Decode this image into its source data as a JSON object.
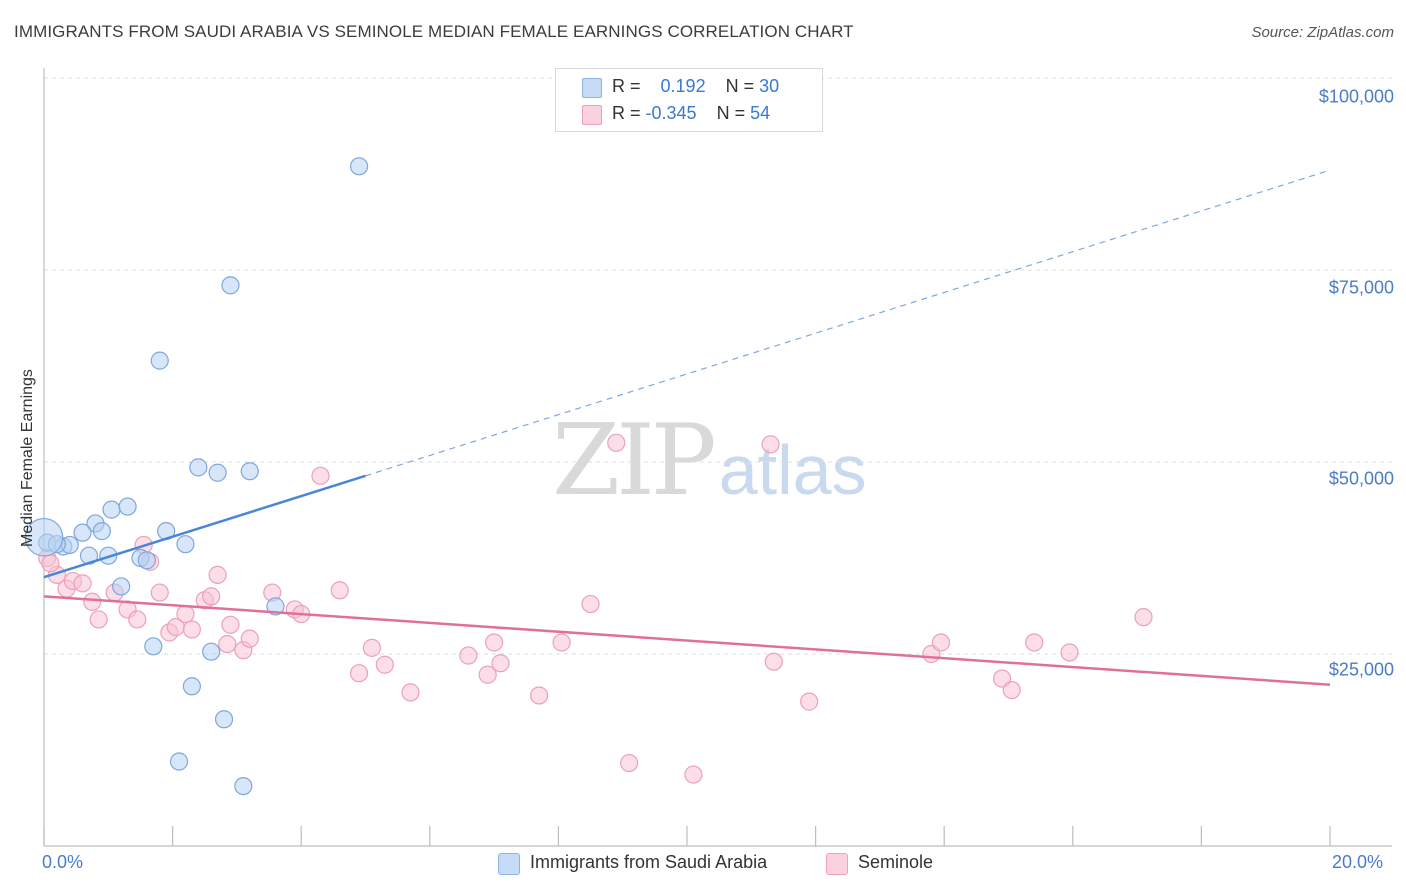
{
  "header": {
    "title": "IMMIGRANTS FROM SAUDI ARABIA VS SEMINOLE MEDIAN FEMALE EARNINGS CORRELATION CHART",
    "source": "Source: ZipAtlas.com"
  },
  "watermark": {
    "zip": "ZIP",
    "atlas": "atlas"
  },
  "legend": {
    "rows": [
      {
        "r_label": "R =",
        "r_value": "0.192",
        "n_label": "N =",
        "n_value": "30",
        "color": "#a9c8ef"
      },
      {
        "r_label": "R =",
        "r_value": "-0.345",
        "n_label": "N =",
        "n_value": "54",
        "color": "#f5b8cb"
      }
    ]
  },
  "bottom_legend": {
    "items": [
      {
        "label": "Immigrants from Saudi Arabia",
        "color": "#a9c8ef"
      },
      {
        "label": "Seminole",
        "color": "#f5b8cb"
      }
    ]
  },
  "chart_data": {
    "type": "scatter",
    "title": "IMMIGRANTS FROM SAUDI ARABIA VS SEMINOLE MEDIAN FEMALE EARNINGS CORRELATION CHART",
    "xlabel": "",
    "ylabel": "Median Female Earnings",
    "xlim": [
      0,
      20
    ],
    "ylim": [
      0,
      100000
    ],
    "x_tick_labels": [
      "0.0%",
      "20.0%"
    ],
    "y_tick_labels": [
      "$25,000",
      "$50,000",
      "$75,000",
      "$100,000"
    ],
    "y_tick_values": [
      25000,
      50000,
      75000,
      100000
    ],
    "grid": true,
    "legend_position": "top-center",
    "series": [
      {
        "name": "Immigrants from Saudi Arabia",
        "color": "#4a86d8",
        "fill": "#b6d1f2",
        "points": [
          [
            0.05,
            39500
          ],
          [
            0.3,
            39000
          ],
          [
            0.4,
            39200
          ],
          [
            0.7,
            37800
          ],
          [
            0.8,
            42000
          ],
          [
            0.9,
            41000
          ],
          [
            0.6,
            40800
          ],
          [
            1.05,
            43800
          ],
          [
            1.3,
            44200
          ],
          [
            1.0,
            37800
          ],
          [
            1.2,
            33800
          ],
          [
            1.5,
            37500
          ],
          [
            1.6,
            37200
          ],
          [
            1.9,
            41000
          ],
          [
            2.2,
            39300
          ],
          [
            1.7,
            26000
          ],
          [
            2.3,
            20800
          ],
          [
            2.4,
            49300
          ],
          [
            2.7,
            48600
          ],
          [
            3.2,
            48800
          ],
          [
            2.9,
            73000
          ],
          [
            1.8,
            63200
          ],
          [
            4.9,
            88500
          ],
          [
            3.6,
            31200
          ],
          [
            2.6,
            25300
          ],
          [
            2.8,
            16500
          ],
          [
            2.1,
            11000
          ],
          [
            3.1,
            7800
          ],
          [
            0.2,
            39300
          ],
          [
            0.0,
            40200
          ]
        ],
        "sizes": [
          1,
          1,
          1,
          1,
          1,
          1,
          1,
          1,
          1,
          1,
          1,
          1,
          1,
          1,
          1,
          1,
          1,
          1,
          1,
          1,
          1,
          1,
          1,
          1,
          1,
          1,
          1,
          1,
          1,
          2.2
        ],
        "trend": {
          "x0": 0,
          "y0": 35000,
          "x1": 5.0,
          "y1": 48200,
          "x_ext": 20,
          "y_ext": 88000
        }
      },
      {
        "name": "Seminole",
        "color": "#e0709a",
        "fill": "#f7c3d3",
        "points": [
          [
            0.05,
            37500
          ],
          [
            0.2,
            35300
          ],
          [
            0.35,
            33500
          ],
          [
            0.45,
            34500
          ],
          [
            0.6,
            34200
          ],
          [
            0.75,
            31800
          ],
          [
            0.85,
            29500
          ],
          [
            1.1,
            33000
          ],
          [
            1.3,
            30800
          ],
          [
            1.45,
            29500
          ],
          [
            1.55,
            39200
          ],
          [
            1.65,
            37000
          ],
          [
            1.8,
            33000
          ],
          [
            1.95,
            27800
          ],
          [
            2.05,
            28500
          ],
          [
            2.2,
            30200
          ],
          [
            2.3,
            28200
          ],
          [
            2.5,
            32000
          ],
          [
            2.6,
            32500
          ],
          [
            2.7,
            35300
          ],
          [
            2.9,
            28800
          ],
          [
            2.85,
            26300
          ],
          [
            3.1,
            25500
          ],
          [
            3.2,
            27000
          ],
          [
            3.55,
            33000
          ],
          [
            3.9,
            30800
          ],
          [
            4.0,
            30200
          ],
          [
            4.3,
            48200
          ],
          [
            4.6,
            33300
          ],
          [
            4.9,
            22500
          ],
          [
            5.1,
            25800
          ],
          [
            5.3,
            23600
          ],
          [
            5.7,
            20000
          ],
          [
            6.6,
            24800
          ],
          [
            6.9,
            22300
          ],
          [
            7.0,
            26500
          ],
          [
            7.1,
            23800
          ],
          [
            7.7,
            19600
          ],
          [
            8.05,
            26500
          ],
          [
            8.5,
            31500
          ],
          [
            8.9,
            52500
          ],
          [
            9.1,
            10800
          ],
          [
            10.1,
            9300
          ],
          [
            11.3,
            52300
          ],
          [
            11.35,
            24000
          ],
          [
            11.9,
            18800
          ],
          [
            13.8,
            25000
          ],
          [
            13.95,
            26500
          ],
          [
            14.9,
            21800
          ],
          [
            15.05,
            20300
          ],
          [
            15.4,
            26500
          ],
          [
            15.95,
            25200
          ],
          [
            17.1,
            29800
          ],
          [
            0.1,
            36800
          ]
        ],
        "trend": {
          "x0": 0,
          "y0": 32500,
          "x1": 20,
          "y1": 21000
        }
      }
    ]
  }
}
